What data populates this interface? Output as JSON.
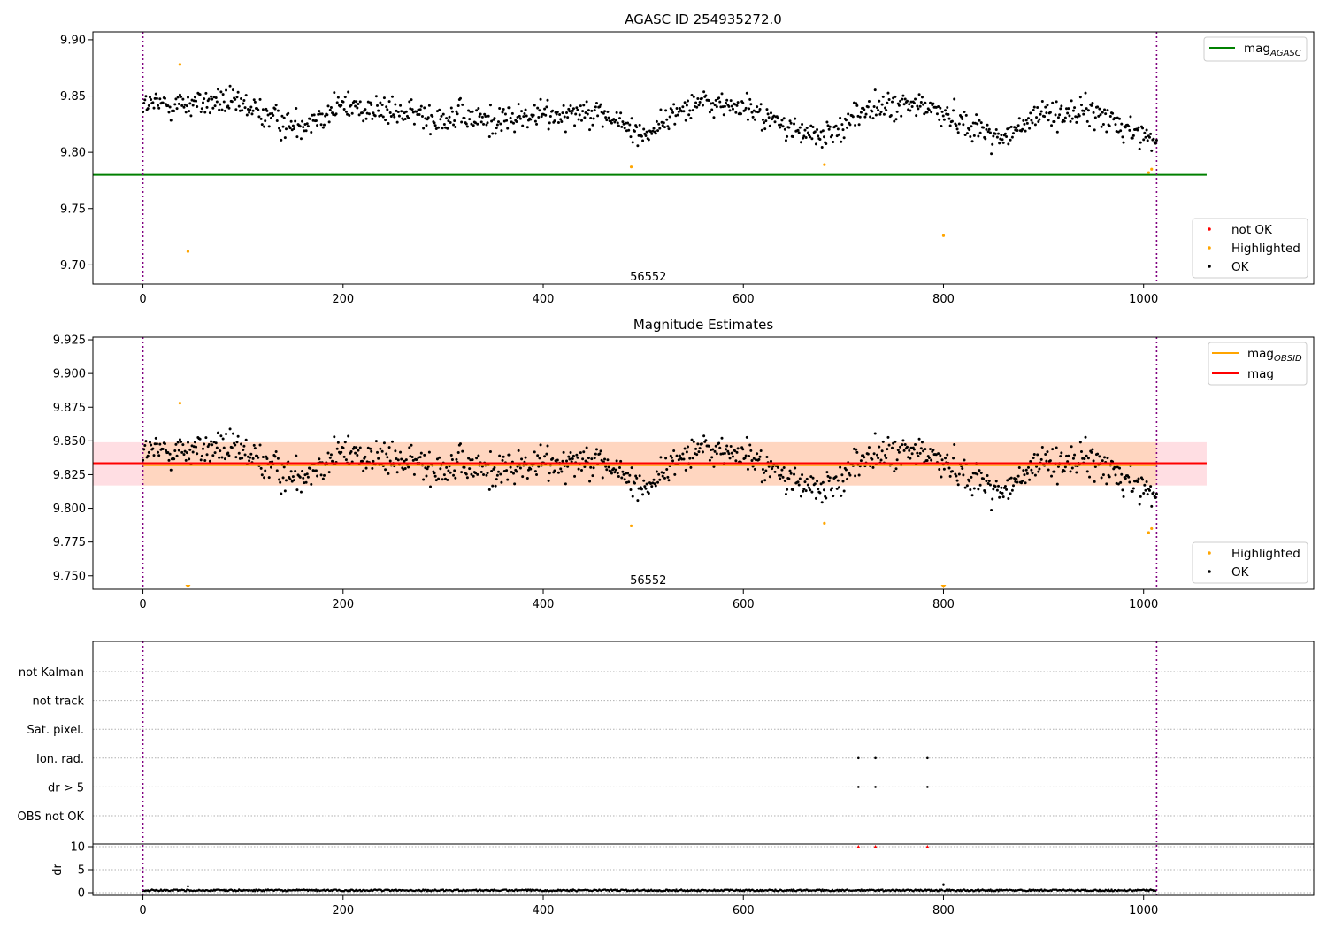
{
  "chart_data": [
    {
      "type": "scatter",
      "title": "AGASC ID 254935272.0",
      "xlim": [
        -50,
        1170
      ],
      "ylim": [
        9.683,
        9.907
      ],
      "xticks": [
        0,
        200,
        400,
        600,
        800,
        1000
      ],
      "yticks": [
        9.7,
        9.75,
        9.8,
        9.85,
        9.9
      ],
      "ytick_format": "2",
      "annotation": {
        "text": "56552",
        "x": 505,
        "y": 9.686
      },
      "vlines": [
        0,
        1013
      ],
      "hline": {
        "y": 9.78,
        "x_end": 1063,
        "label": "mag",
        "sub": "AGASC",
        "color": "#008000"
      },
      "legend_top": {
        "position": "upper right",
        "entries": [
          {
            "label": "mag",
            "sub": "AGASC",
            "color": "#008000",
            "kind": "line"
          }
        ]
      },
      "legend_bottom": {
        "position": "lower right",
        "entries": [
          {
            "label": "not OK",
            "color": "#ff0000",
            "kind": "dot"
          },
          {
            "label": "Highlighted",
            "color": "#ffa500",
            "kind": "dot"
          },
          {
            "label": "OK",
            "color": "#000000",
            "kind": "dot"
          }
        ]
      },
      "series": [
        {
          "name": "Highlighted",
          "color": "#ffa500",
          "points": [
            [
              37,
              9.878
            ],
            [
              45,
              9.712
            ],
            [
              488,
              9.787
            ],
            [
              681,
              9.789
            ],
            [
              800,
              9.726
            ],
            [
              1005,
              9.782
            ],
            [
              1008,
              9.785
            ]
          ]
        },
        {
          "name": "OK",
          "color": "#000000",
          "n_points": 1013,
          "x_range": [
            0,
            1013
          ],
          "segments": [
            {
              "x": 0,
              "mean": 9.842,
              "sd": 0.01
            },
            {
              "x": 40,
              "mean": 9.843,
              "sd": 0.011
            },
            {
              "x": 80,
              "mean": 9.845,
              "sd": 0.011
            },
            {
              "x": 110,
              "mean": 9.838,
              "sd": 0.011
            },
            {
              "x": 150,
              "mean": 9.823,
              "sd": 0.011
            },
            {
              "x": 200,
              "mean": 9.842,
              "sd": 0.011
            },
            {
              "x": 250,
              "mean": 9.835,
              "sd": 0.011
            },
            {
              "x": 300,
              "mean": 9.832,
              "sd": 0.012
            },
            {
              "x": 350,
              "mean": 9.828,
              "sd": 0.012
            },
            {
              "x": 400,
              "mean": 9.833,
              "sd": 0.012
            },
            {
              "x": 450,
              "mean": 9.838,
              "sd": 0.01
            },
            {
              "x": 500,
              "mean": 9.815,
              "sd": 0.01
            },
            {
              "x": 550,
              "mean": 9.845,
              "sd": 0.01
            },
            {
              "x": 600,
              "mean": 9.84,
              "sd": 0.01
            },
            {
              "x": 650,
              "mean": 9.82,
              "sd": 0.01
            },
            {
              "x": 680,
              "mean": 9.812,
              "sd": 0.01
            },
            {
              "x": 720,
              "mean": 9.838,
              "sd": 0.011
            },
            {
              "x": 780,
              "mean": 9.842,
              "sd": 0.01
            },
            {
              "x": 830,
              "mean": 9.823,
              "sd": 0.01
            },
            {
              "x": 860,
              "mean": 9.812,
              "sd": 0.01
            },
            {
              "x": 900,
              "mean": 9.835,
              "sd": 0.011
            },
            {
              "x": 950,
              "mean": 9.835,
              "sd": 0.011
            },
            {
              "x": 1000,
              "mean": 9.815,
              "sd": 0.01
            },
            {
              "x": 1013,
              "mean": 9.81,
              "sd": 0.01
            }
          ]
        }
      ]
    },
    {
      "type": "scatter",
      "title": "Magnitude Estimates",
      "xlim": [
        -50,
        1170
      ],
      "ylim": [
        9.74,
        9.927
      ],
      "xticks": [
        0,
        200,
        400,
        600,
        800,
        1000
      ],
      "yticks": [
        9.75,
        9.775,
        9.8,
        9.825,
        9.85,
        9.875,
        9.9,
        9.925
      ],
      "ytick_format": "3",
      "annotation": {
        "text": "56552",
        "x": 505,
        "y": 9.744
      },
      "vlines": [
        0,
        1013
      ],
      "band": {
        "y0": 9.817,
        "y1": 9.849,
        "x_start": -50,
        "x_end": 1063,
        "color": "#ffb6c1"
      },
      "band_inner": {
        "y0": 9.817,
        "y1": 9.849,
        "x_start": 0,
        "x_end": 1013,
        "color": "#ffd0a8"
      },
      "hlines": [
        {
          "y": 9.8335,
          "x_start": -50,
          "x_end": 1063,
          "color": "#ff0000",
          "label": "mag"
        },
        {
          "y": 9.832,
          "x_start": 0,
          "x_end": 1013,
          "color": "#ffa500",
          "label": "mag",
          "sub": "OBSID"
        }
      ],
      "legend_top": {
        "position": "upper right",
        "entries": [
          {
            "label": "mag",
            "sub": "OBSID",
            "color": "#ffa500",
            "kind": "line"
          },
          {
            "label": "mag",
            "color": "#ff0000",
            "kind": "line"
          }
        ]
      },
      "legend_bottom": {
        "position": "lower right",
        "entries": [
          {
            "label": "Highlighted",
            "color": "#ffa500",
            "kind": "dot"
          },
          {
            "label": "OK",
            "color": "#000000",
            "kind": "dot"
          }
        ]
      },
      "series": [
        {
          "name": "Highlighted",
          "color": "#ffa500",
          "points": [
            [
              37,
              9.878
            ],
            [
              488,
              9.787
            ],
            [
              681,
              9.789
            ],
            [
              1005,
              9.782
            ],
            [
              1008,
              9.785
            ]
          ],
          "clipped_low": [
            45,
            800
          ]
        },
        {
          "name": "OK",
          "color": "#000000",
          "same_as_panel": 0
        }
      ]
    },
    {
      "type": "scatter",
      "xlim": [
        -50,
        1170
      ],
      "xticks": [
        0,
        200,
        400,
        600,
        800,
        1000
      ],
      "vlines": [
        0,
        1013
      ],
      "flag_rows": [
        "not Kalman",
        "not track",
        "Sat. pixel.",
        "Ion. rad.",
        "dr > 5",
        "OBS not OK"
      ],
      "flag_points": [
        {
          "row": "Ion. rad.",
          "x": [
            715,
            732,
            784
          ]
        },
        {
          "row": "dr > 5",
          "x": [
            715,
            732,
            784
          ]
        }
      ],
      "dr": {
        "ylabel": "dr",
        "ylim": [
          -0.5,
          10.5
        ],
        "yticks": [
          0,
          5,
          10
        ],
        "baseline": 0.5,
        "spikes": [
          [
            45,
            1.4
          ],
          [
            800,
            1.8
          ]
        ],
        "red_markers": {
          "x": [
            715,
            732,
            784
          ],
          "y": 10,
          "color": "#ff0000"
        }
      }
    }
  ]
}
